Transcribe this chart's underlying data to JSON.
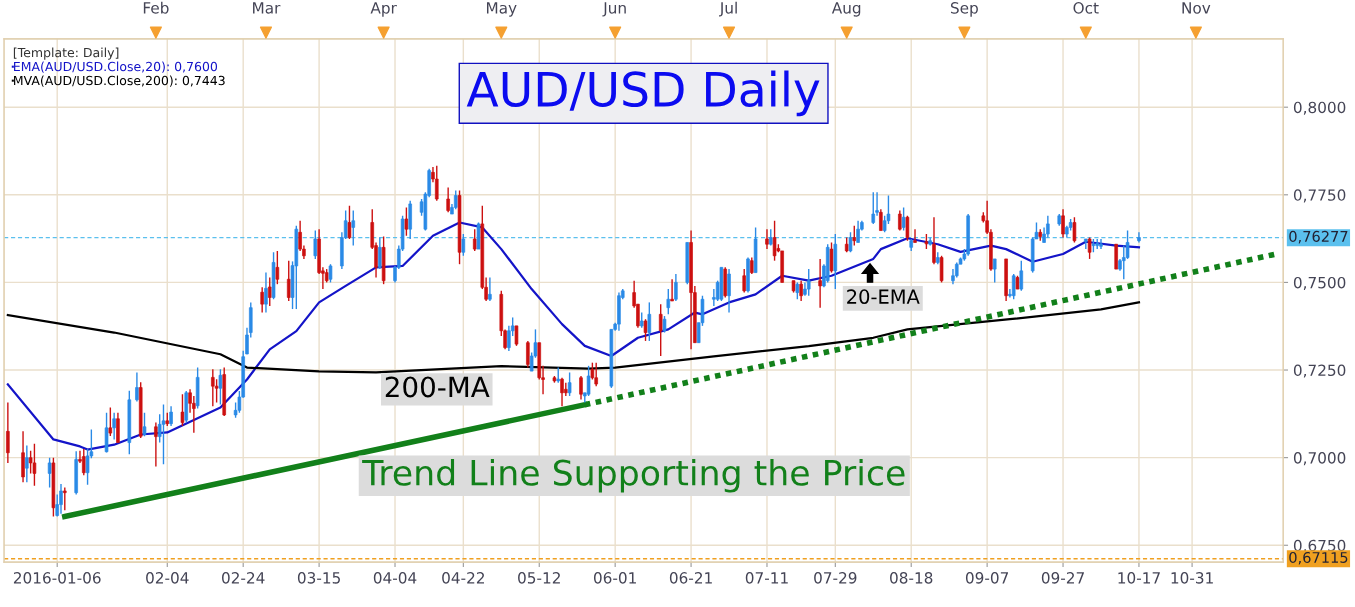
{
  "chart_data": {
    "type": "candlestick",
    "title": "AUD/USD Daily",
    "legend_title": "[Template: Daily]",
    "x": [
      "2015-12-24",
      "2015-12-28",
      "2015-12-29",
      "2015-12-30",
      "2015-12-31",
      "2016-01-04",
      "2016-01-05",
      "2016-01-06",
      "2016-01-07",
      "2016-01-08",
      "2016-01-11",
      "2016-01-12",
      "2016-01-13",
      "2016-01-14",
      "2016-01-15",
      "2016-01-19",
      "2016-01-20",
      "2016-01-21",
      "2016-01-22",
      "2016-01-25",
      "2016-01-27",
      "2016-01-28",
      "2016-01-29",
      "2016-02-01",
      "2016-02-02",
      "2016-02-03",
      "2016-02-04",
      "2016-02-05",
      "2016-02-08",
      "2016-02-09",
      "2016-02-10",
      "2016-02-11",
      "2016-02-12",
      "2016-02-16",
      "2016-02-17",
      "2016-02-18",
      "2016-02-19",
      "2016-02-22",
      "2016-02-23",
      "2016-02-24",
      "2016-02-25",
      "2016-02-26",
      "2016-02-29",
      "2016-03-01",
      "2016-03-02",
      "2016-03-03",
      "2016-03-04",
      "2016-03-07",
      "2016-03-08",
      "2016-03-09",
      "2016-03-10",
      "2016-03-11",
      "2016-03-14",
      "2016-03-15",
      "2016-03-16",
      "2016-03-17",
      "2016-03-18",
      "2016-03-21",
      "2016-03-22",
      "2016-03-23",
      "2016-03-24",
      "2016-03-29",
      "2016-03-30",
      "2016-03-31",
      "2016-04-01",
      "2016-04-04",
      "2016-04-05",
      "2016-04-06",
      "2016-04-07",
      "2016-04-08",
      "2016-04-11",
      "2016-04-12",
      "2016-04-13",
      "2016-04-14",
      "2016-04-15",
      "2016-04-18",
      "2016-04-19",
      "2016-04-20",
      "2016-04-21",
      "2016-04-22",
      "2016-04-25",
      "2016-04-26",
      "2016-04-27",
      "2016-04-28",
      "2016-04-29",
      "2016-05-02",
      "2016-05-03",
      "2016-05-04",
      "2016-05-05",
      "2016-05-06",
      "2016-05-09",
      "2016-05-10",
      "2016-05-11",
      "2016-05-12",
      "2016-05-13",
      "2016-05-16",
      "2016-05-17",
      "2016-05-18",
      "2016-05-19",
      "2016-05-20",
      "2016-05-23",
      "2016-05-24",
      "2016-05-25",
      "2016-05-26",
      "2016-05-27",
      "2016-05-31",
      "2016-06-01",
      "2016-06-02",
      "2016-06-03",
      "2016-06-06",
      "2016-06-07",
      "2016-06-08",
      "2016-06-09",
      "2016-06-10",
      "2016-06-13",
      "2016-06-14",
      "2016-06-15",
      "2016-06-16",
      "2016-06-17",
      "2016-06-20",
      "2016-06-21",
      "2016-06-22",
      "2016-06-23",
      "2016-06-24",
      "2016-06-27",
      "2016-06-28",
      "2016-06-29",
      "2016-06-30",
      "2016-07-01",
      "2016-07-05",
      "2016-07-06",
      "2016-07-07",
      "2016-07-08",
      "2016-07-11",
      "2016-07-12",
      "2016-07-13",
      "2016-07-14",
      "2016-07-15",
      "2016-07-18",
      "2016-07-19",
      "2016-07-20",
      "2016-07-21",
      "2016-07-22",
      "2016-07-25",
      "2016-07-26",
      "2016-07-27",
      "2016-07-28",
      "2016-07-29",
      "2016-08-01",
      "2016-08-02",
      "2016-08-03",
      "2016-08-04",
      "2016-08-05",
      "2016-08-08",
      "2016-08-09",
      "2016-08-10",
      "2016-08-11",
      "2016-08-12",
      "2016-08-15",
      "2016-08-16",
      "2016-08-17",
      "2016-08-18",
      "2016-08-19",
      "2016-08-22",
      "2016-08-23",
      "2016-08-24",
      "2016-08-25",
      "2016-08-26",
      "2016-08-29",
      "2016-08-30",
      "2016-08-31",
      "2016-09-01",
      "2016-09-02",
      "2016-09-06",
      "2016-09-07",
      "2016-09-08",
      "2016-09-09",
      "2016-09-12",
      "2016-09-13",
      "2016-09-14",
      "2016-09-15",
      "2016-09-16",
      "2016-09-19",
      "2016-09-20",
      "2016-09-21",
      "2016-09-22",
      "2016-09-23",
      "2016-09-26",
      "2016-09-27",
      "2016-09-28",
      "2016-09-29",
      "2016-09-30",
      "2016-10-03",
      "2016-10-04",
      "2016-10-05",
      "2016-10-06",
      "2016-10-07",
      "2016-10-11",
      "2016-10-12",
      "2016-10-13",
      "2016-10-14",
      "2016-10-17"
    ],
    "ohlc": [
      [
        0.7075,
        0.7157,
        0.6985,
        0.7014
      ],
      [
        0.7014,
        0.7075,
        0.693,
        0.6945
      ],
      [
        0.697,
        0.7035,
        0.693,
        0.7
      ],
      [
        0.7,
        0.702,
        0.6955,
        0.6985
      ],
      [
        0.6985,
        0.704,
        0.692,
        0.6955
      ],
      [
        0.6955,
        0.7,
        0.6915,
        0.6985
      ],
      [
        0.6985,
        0.7,
        0.6832,
        0.6857
      ],
      [
        0.6835,
        0.6895,
        0.6832,
        0.6866
      ],
      [
        0.6866,
        0.6925,
        0.684,
        0.6905
      ],
      [
        0.6905,
        0.6915,
        0.685,
        0.69
      ],
      [
        0.69,
        0.7018,
        0.6895,
        0.6995
      ],
      [
        0.6995,
        0.702,
        0.6985,
        0.699
      ],
      [
        0.7003,
        0.7025,
        0.695,
        0.6957
      ],
      [
        0.6957,
        0.7025,
        0.6923,
        0.7005
      ],
      [
        0.7005,
        0.708,
        0.6998,
        0.7017
      ],
      [
        0.7017,
        0.7128,
        0.7015,
        0.7085
      ],
      [
        0.7085,
        0.7143,
        0.7062,
        0.707
      ],
      [
        0.7085,
        0.7128,
        0.7052,
        0.7111
      ],
      [
        0.7111,
        0.7128,
        0.7043,
        0.7043
      ],
      [
        0.7043,
        0.7191,
        0.701,
        0.7165
      ],
      [
        0.7165,
        0.7243,
        0.716,
        0.72
      ],
      [
        0.72,
        0.7215,
        0.7056,
        0.7061
      ],
      [
        0.7066,
        0.7128,
        0.7061,
        0.7088
      ],
      [
        0.7088,
        0.71,
        0.6975,
        0.706
      ],
      [
        0.706,
        0.7124,
        0.7043,
        0.7095
      ],
      [
        0.7095,
        0.7152,
        0.6981,
        0.7105
      ],
      [
        0.7105,
        0.7128,
        0.709,
        0.7097
      ],
      [
        0.7097,
        0.7147,
        0.709,
        0.713
      ],
      [
        0.713,
        0.7181,
        0.709,
        0.71
      ],
      [
        0.7107,
        0.719,
        0.71,
        0.7185
      ],
      [
        0.7185,
        0.7195,
        0.7128,
        0.7155
      ],
      [
        0.7155,
        0.7176,
        0.7071,
        0.714
      ],
      [
        0.7148,
        0.7257,
        0.714,
        0.7229
      ],
      [
        0.7229,
        0.7252,
        0.7147,
        0.7204
      ],
      [
        0.7204,
        0.7224,
        0.7157,
        0.7198
      ],
      [
        0.7198,
        0.7252,
        0.7152,
        0.7235
      ],
      [
        0.7237,
        0.7257,
        0.7119,
        0.7122
      ],
      [
        0.7122,
        0.7157,
        0.7114,
        0.7135
      ],
      [
        0.7135,
        0.719,
        0.7128,
        0.7173
      ],
      [
        0.7173,
        0.7305,
        0.7171,
        0.7288
      ],
      [
        0.7296,
        0.7371,
        0.7295,
        0.735
      ],
      [
        0.7357,
        0.7443,
        0.7343,
        0.7428
      ],
      [
        0.7472,
        0.7486,
        0.7414,
        0.7438
      ],
      [
        0.7438,
        0.7528,
        0.7414,
        0.7483
      ],
      [
        0.7487,
        0.7514,
        0.7433,
        0.7457
      ],
      [
        0.7457,
        0.7586,
        0.7452,
        0.7557
      ],
      [
        0.7543,
        0.759,
        0.7495,
        0.7509
      ],
      [
        0.7509,
        0.7562,
        0.7447,
        0.7457
      ],
      [
        0.7457,
        0.756,
        0.7424,
        0.7548
      ],
      [
        0.7547,
        0.7662,
        0.7424,
        0.7652
      ],
      [
        0.7643,
        0.7676,
        0.759,
        0.7595
      ],
      [
        0.7595,
        0.7605,
        0.7567,
        0.7576
      ],
      [
        0.7576,
        0.7648,
        0.7567,
        0.7624
      ],
      [
        0.7624,
        0.7652,
        0.7524,
        0.7528
      ],
      [
        0.7533,
        0.7543,
        0.7481,
        0.7526
      ],
      [
        0.7528,
        0.7538,
        0.75,
        0.7505
      ],
      [
        0.7509,
        0.7552,
        0.75,
        0.7547
      ],
      [
        0.7547,
        0.7643,
        0.7538,
        0.7628
      ],
      [
        0.7628,
        0.7705,
        0.7624,
        0.7676
      ],
      [
        0.7671,
        0.7719,
        0.7624,
        0.7628
      ],
      [
        0.7657,
        0.7705,
        0.7605,
        0.7676
      ],
      [
        0.7671,
        0.7709,
        0.7595,
        0.76
      ],
      [
        0.7605,
        0.7614,
        0.7514,
        0.7543
      ],
      [
        0.7543,
        0.7628,
        0.7538,
        0.76
      ],
      [
        0.76,
        0.7631,
        0.7495,
        0.7505
      ],
      [
        0.7505,
        0.7547,
        0.75,
        0.7543
      ],
      [
        0.7543,
        0.7605,
        0.7538,
        0.7595
      ],
      [
        0.7595,
        0.769,
        0.759,
        0.7681
      ],
      [
        0.7681,
        0.7714,
        0.7633,
        0.7652
      ],
      [
        0.7652,
        0.7733,
        0.7624,
        0.7724
      ],
      [
        0.77,
        0.7738,
        0.769,
        0.773
      ],
      [
        0.7652,
        0.7757,
        0.7648,
        0.7752
      ],
      [
        0.7748,
        0.7824,
        0.7743,
        0.7819
      ],
      [
        0.7814,
        0.7829,
        0.7786,
        0.7795
      ],
      [
        0.7795,
        0.7833,
        0.7733,
        0.7738
      ],
      [
        0.7738,
        0.7771,
        0.77,
        0.7705
      ],
      [
        0.7695,
        0.7724,
        0.7695,
        0.7714
      ],
      [
        0.7714,
        0.7762,
        0.7709,
        0.7748
      ],
      [
        0.7748,
        0.7762,
        0.7552,
        0.7586
      ],
      [
        0.7586,
        0.7638,
        0.7576,
        0.7624
      ],
      [
        0.7624,
        0.7652,
        0.759,
        0.7595
      ],
      [
        0.7595,
        0.7671,
        0.7595,
        0.7667
      ],
      [
        0.7667,
        0.7719,
        0.7481,
        0.7486
      ],
      [
        0.7486,
        0.7514,
        0.7447,
        0.7452
      ],
      [
        0.7452,
        0.7514,
        0.7447,
        0.7466
      ],
      [
        0.7466,
        0.7476,
        0.7347,
        0.7362
      ],
      [
        0.7362,
        0.7366,
        0.7309,
        0.7314
      ],
      [
        0.7314,
        0.7376,
        0.7304,
        0.7362
      ],
      [
        0.7362,
        0.74,
        0.7347,
        0.7376
      ],
      [
        0.7376,
        0.7376,
        0.7319,
        0.7324
      ],
      [
        0.7328,
        0.7333,
        0.7257,
        0.7266
      ],
      [
        0.7247,
        0.73,
        0.7247,
        0.729
      ],
      [
        0.729,
        0.7366,
        0.7285,
        0.7328
      ],
      [
        0.7328,
        0.7328,
        0.7223,
        0.7228
      ],
      [
        0.7228,
        0.7262,
        0.7181,
        0.7223
      ],
      [
        0.7228,
        0.7233,
        0.7214,
        0.7219
      ],
      [
        0.7219,
        0.7257,
        0.7214,
        0.7224
      ],
      [
        0.7224,
        0.7228,
        0.7147,
        0.7185
      ],
      [
        0.7195,
        0.7214,
        0.7176,
        0.7185
      ],
      [
        0.7185,
        0.7243,
        0.7176,
        0.7214
      ],
      [
        0.7228,
        0.7233,
        0.7166,
        0.7181
      ],
      [
        0.7176,
        0.7185,
        0.7157,
        0.7185
      ],
      [
        0.7181,
        0.7262,
        0.7176,
        0.7233
      ],
      [
        0.7252,
        0.7271,
        0.7223,
        0.7228
      ],
      [
        0.7228,
        0.7271,
        0.7204,
        0.721
      ],
      [
        0.7204,
        0.7366,
        0.7199,
        0.7366
      ],
      [
        0.7366,
        0.7385,
        0.7362,
        0.7381
      ],
      [
        0.7381,
        0.7471,
        0.7362,
        0.7462
      ],
      [
        0.7457,
        0.7481,
        0.7452,
        0.7476
      ],
      [
        0.7471,
        0.7505,
        0.7428,
        0.7433
      ],
      [
        0.7438,
        0.7438,
        0.7371,
        0.7376
      ],
      [
        0.7376,
        0.7414,
        0.7371,
        0.739
      ],
      [
        0.739,
        0.7395,
        0.7333,
        0.7357
      ],
      [
        0.7357,
        0.7443,
        0.7333,
        0.7409
      ],
      [
        0.7409,
        0.7438,
        0.729,
        0.7362
      ],
      [
        0.7362,
        0.7404,
        0.7357,
        0.7395
      ],
      [
        0.7428,
        0.7481,
        0.7409,
        0.7452
      ],
      [
        0.7452,
        0.7509,
        0.7447,
        0.7447
      ],
      [
        0.7452,
        0.7524,
        0.7447,
        0.75
      ],
      [
        0.75,
        0.7614,
        0.7495,
        0.7614
      ],
      [
        0.7614,
        0.7648,
        0.7309,
        0.7471
      ],
      [
        0.7471,
        0.749,
        0.7328,
        0.7328
      ],
      [
        0.7328,
        0.7385,
        0.7328,
        0.7385
      ],
      [
        0.7385,
        0.7462,
        0.7376,
        0.7452
      ],
      [
        0.7452,
        0.7481,
        0.7433,
        0.7457
      ],
      [
        0.7452,
        0.7505,
        0.7447,
        0.75
      ],
      [
        0.7452,
        0.7543,
        0.7447,
        0.7543
      ],
      [
        0.7538,
        0.7543,
        0.7457,
        0.7462
      ],
      [
        0.7462,
        0.7538,
        0.7414,
        0.7524
      ],
      [
        0.7519,
        0.7538,
        0.7471,
        0.7476
      ],
      [
        0.7476,
        0.7571,
        0.7471,
        0.7567
      ],
      [
        0.7562,
        0.7571,
        0.7524,
        0.7528
      ],
      [
        0.7528,
        0.7657,
        0.7528,
        0.7624
      ],
      [
        0.7624,
        0.7652,
        0.7595,
        0.7609
      ],
      [
        0.7609,
        0.7652,
        0.7605,
        0.7628
      ],
      [
        0.7628,
        0.7676,
        0.7562,
        0.7576
      ],
      [
        0.7597,
        0.7609,
        0.7586,
        0.759
      ],
      [
        0.759,
        0.759,
        0.75,
        0.75
      ],
      [
        0.7505,
        0.7505,
        0.7471,
        0.7476
      ],
      [
        0.7471,
        0.75,
        0.7452,
        0.7495
      ],
      [
        0.7495,
        0.7505,
        0.7447,
        0.7462
      ],
      [
        0.7466,
        0.75,
        0.7462,
        0.7481
      ],
      [
        0.7481,
        0.7538,
        0.7462,
        0.7505
      ],
      [
        0.7505,
        0.7567,
        0.7428,
        0.749
      ],
      [
        0.749,
        0.7552,
        0.7486,
        0.7547
      ],
      [
        0.7505,
        0.7609,
        0.75,
        0.76
      ],
      [
        0.7595,
        0.7614,
        0.7528,
        0.7533
      ],
      [
        0.7533,
        0.7638,
        0.7481,
        0.7609
      ],
      [
        0.7609,
        0.7628,
        0.7586,
        0.759
      ],
      [
        0.759,
        0.7643,
        0.7586,
        0.7628
      ],
      [
        0.7628,
        0.7662,
        0.7605,
        0.7619
      ],
      [
        0.7614,
        0.7676,
        0.7614,
        0.7652
      ],
      [
        0.7652,
        0.7676,
        0.7648,
        0.7671
      ],
      [
        0.7671,
        0.7757,
        0.7667,
        0.7695
      ],
      [
        0.77,
        0.7757,
        0.769,
        0.7705
      ],
      [
        0.77,
        0.7709,
        0.7648,
        0.7648
      ],
      [
        0.7648,
        0.769,
        0.7643,
        0.7676
      ],
      [
        0.7676,
        0.7748,
        0.7667,
        0.7695
      ],
      [
        0.7695,
        0.7705,
        0.7648,
        0.7652
      ],
      [
        0.7657,
        0.7714,
        0.7648,
        0.7686
      ],
      [
        0.7686,
        0.769,
        0.7619,
        0.7628
      ],
      [
        0.76,
        0.7624,
        0.759,
        0.7619
      ],
      [
        0.7619,
        0.7652,
        0.7614,
        0.7614
      ],
      [
        0.7616,
        0.7638,
        0.7595,
        0.761
      ],
      [
        0.7609,
        0.7628,
        0.7605,
        0.7619
      ],
      [
        0.7609,
        0.7686,
        0.7552,
        0.7557
      ],
      [
        0.7557,
        0.7586,
        0.7552,
        0.7571
      ],
      [
        0.7571,
        0.7576,
        0.75,
        0.7505
      ],
      [
        0.7505,
        0.7538,
        0.7495,
        0.7519
      ],
      [
        0.7519,
        0.7557,
        0.7514,
        0.7552
      ],
      [
        0.7552,
        0.7571,
        0.7552,
        0.7567
      ],
      [
        0.7567,
        0.7595,
        0.7562,
        0.7581
      ],
      [
        0.7581,
        0.7695,
        0.7576,
        0.769
      ],
      [
        0.769,
        0.77,
        0.7671,
        0.7676
      ],
      [
        0.7676,
        0.7733,
        0.7638,
        0.7643
      ],
      [
        0.7643,
        0.7652,
        0.7533,
        0.7538
      ],
      [
        0.7538,
        0.7567,
        0.75,
        0.7567
      ],
      [
        0.7567,
        0.7567,
        0.7447,
        0.7462
      ],
      [
        0.7462,
        0.7481,
        0.7457,
        0.7466
      ],
      [
        0.7462,
        0.7524,
        0.7452,
        0.7519
      ],
      [
        0.7514,
        0.7519,
        0.7481,
        0.7481
      ],
      [
        0.7481,
        0.7562,
        0.7476,
        0.7533
      ],
      [
        0.7533,
        0.7628,
        0.7528,
        0.7624
      ],
      [
        0.7624,
        0.7671,
        0.7624,
        0.7643
      ],
      [
        0.7643,
        0.7652,
        0.7619,
        0.7631
      ],
      [
        0.7614,
        0.7657,
        0.7614,
        0.7638
      ],
      [
        0.7638,
        0.769,
        0.7628,
        0.7667
      ],
      [
        0.7667,
        0.7695,
        0.7662,
        0.769
      ],
      [
        0.769,
        0.7709,
        0.7628,
        0.7638
      ],
      [
        0.7638,
        0.7662,
        0.7628,
        0.7657
      ],
      [
        0.7657,
        0.7681,
        0.7648,
        0.7671
      ],
      [
        0.7671,
        0.7686,
        0.7614,
        0.7619
      ],
      [
        0.7616,
        0.7624,
        0.7595,
        0.7624
      ],
      [
        0.7624,
        0.7628,
        0.7567,
        0.7586
      ],
      [
        0.7605,
        0.7624,
        0.7586,
        0.7609
      ],
      [
        0.7605,
        0.7624,
        0.7595,
        0.7611
      ],
      [
        0.7603,
        0.7624,
        0.7595,
        0.7609
      ],
      [
        0.7609,
        0.7609,
        0.7538,
        0.7538
      ],
      [
        0.7538,
        0.7567,
        0.7533,
        0.7562
      ],
      [
        0.7562,
        0.7605,
        0.7509,
        0.7571
      ],
      [
        0.7571,
        0.7648,
        0.7567,
        0.7614
      ],
      [
        0.7619,
        0.7643,
        0.7614,
        0.7628
      ]
    ],
    "series": [
      {
        "type": "line",
        "name": "EMA(AUD/USD.Close,20): 0,7600",
        "color": "#1414c8",
        "x": [
          "2015-12-24",
          "2016-01-05",
          "2016-01-12",
          "2016-01-14",
          "2016-01-21",
          "2016-01-28",
          "2016-02-04",
          "2016-02-18",
          "2016-02-25",
          "2016-03-02",
          "2016-03-09",
          "2016-03-15",
          "2016-03-22",
          "2016-03-30",
          "2016-04-06",
          "2016-04-14",
          "2016-04-21",
          "2016-04-27",
          "2016-05-02",
          "2016-05-10",
          "2016-05-18",
          "2016-05-24",
          "2016-05-31",
          "2016-06-07",
          "2016-06-15",
          "2016-06-22",
          "2016-06-24",
          "2016-07-01",
          "2016-07-08",
          "2016-07-15",
          "2016-07-22",
          "2016-07-28",
          "2016-08-08",
          "2016-08-10",
          "2016-08-17",
          "2016-08-25",
          "2016-08-31",
          "2016-09-08",
          "2016-09-12",
          "2016-09-19",
          "2016-09-27",
          "2016-10-03",
          "2016-10-11",
          "2016-10-17"
        ],
        "values": [
          0.7209,
          0.7052,
          0.7032,
          0.7023,
          0.7037,
          0.7066,
          0.7072,
          0.7143,
          0.7223,
          0.7309,
          0.7361,
          0.7443,
          0.749,
          0.7543,
          0.7547,
          0.7633,
          0.7671,
          0.7657,
          0.7595,
          0.7481,
          0.7381,
          0.7319,
          0.729,
          0.7342,
          0.7366,
          0.7414,
          0.7409,
          0.7443,
          0.7466,
          0.7519,
          0.7505,
          0.7519,
          0.7567,
          0.7595,
          0.7626,
          0.7609,
          0.7587,
          0.7605,
          0.7595,
          0.7559,
          0.7581,
          0.7616,
          0.7605,
          0.76
        ]
      },
      {
        "type": "line",
        "name": "MVA(AUD/USD.Close,200): 0,7443",
        "color": "#000000",
        "x": [
          "2015-12-24",
          "2016-01-21",
          "2016-02-18",
          "2016-02-25",
          "2016-03-15",
          "2016-03-30",
          "2016-05-02",
          "2016-05-25",
          "2016-06-01",
          "2016-06-27",
          "2016-07-22",
          "2016-08-08",
          "2016-08-17",
          "2016-09-13",
          "2016-10-07",
          "2016-10-17"
        ],
        "values": [
          0.7407,
          0.7357,
          0.7295,
          0.7257,
          0.7246,
          0.7243,
          0.7261,
          0.7254,
          0.7257,
          0.7289,
          0.7318,
          0.7342,
          0.7366,
          0.7395,
          0.7423,
          0.7443
        ]
      },
      {
        "type": "line",
        "color": "#12801a",
        "line_style": "solid",
        "x": [
          "2016-01-08",
          "2016-05-24"
        ],
        "values": [
          0.6832,
          0.7151
        ]
      },
      {
        "type": "line",
        "color": "#12801a",
        "line_style": "dotted",
        "x": [
          "2016-05-24",
          "2016-11-23"
        ],
        "values": [
          0.7151,
          0.7583
        ]
      }
    ],
    "xlim": [
      "2015-12-23",
      "2016-11-24"
    ],
    "xticks": [
      {
        "value": "2016-01-06",
        "label": "2016-01-06"
      },
      {
        "value": "2016-02-04",
        "label": "02-04"
      },
      {
        "value": "2016-02-24",
        "label": "02-24"
      },
      {
        "value": "2016-03-15",
        "label": "03-15"
      },
      {
        "value": "2016-04-04",
        "label": "04-04"
      },
      {
        "value": "2016-04-22",
        "label": "04-22"
      },
      {
        "value": "2016-05-12",
        "label": "05-12"
      },
      {
        "value": "2016-06-01",
        "label": "06-01"
      },
      {
        "value": "2016-06-21",
        "label": "06-21"
      },
      {
        "value": "2016-07-11",
        "label": "07-11"
      },
      {
        "value": "2016-07-29",
        "label": "07-29"
      },
      {
        "value": "2016-08-18",
        "label": "08-18"
      },
      {
        "value": "2016-09-07",
        "label": "09-07"
      },
      {
        "value": "2016-09-27",
        "label": "09-27"
      },
      {
        "value": "2016-10-17",
        "label": "10-17"
      },
      {
        "value": "2016-10-31",
        "label": "10-31"
      }
    ],
    "x2lim": [
      "2015-12-23",
      "2016-11-24"
    ],
    "x2ticks": [
      {
        "value": "2016-02-01",
        "label": "Feb"
      },
      {
        "value": "2016-03-01",
        "label": "Mar"
      },
      {
        "value": "2016-04-01",
        "label": "Apr"
      },
      {
        "value": "2016-05-02",
        "label": "May"
      },
      {
        "value": "2016-06-01",
        "label": "Jun"
      },
      {
        "value": "2016-07-01",
        "label": "Jul"
      },
      {
        "value": "2016-08-01",
        "label": "Aug"
      },
      {
        "value": "2016-09-01",
        "label": "Sep"
      },
      {
        "value": "2016-10-03",
        "label": "Oct"
      },
      {
        "value": "2016-11-01",
        "label": "Nov"
      }
    ],
    "ylim": [
      0.6702,
      0.8195
    ],
    "yticks": [
      {
        "value": 0.675,
        "label": "0,6750"
      },
      {
        "value": 0.7,
        "label": "0,7000"
      },
      {
        "value": 0.725,
        "label": "0,7250"
      },
      {
        "value": 0.75,
        "label": "0,7500"
      },
      {
        "value": 0.775,
        "label": "0,7750"
      },
      {
        "value": 0.8,
        "label": "0,8000"
      }
    ],
    "ref_lines": [
      {
        "axis": "y",
        "value": 0.76277,
        "label": "0,76277",
        "color": "#5bc0ee",
        "line_style": "dashed"
      },
      {
        "axis": "y",
        "value": 0.67115,
        "label": "0,67115",
        "color": "#f0a020",
        "line_style": "dashed"
      }
    ],
    "annotations": [
      {
        "text": "200-MA",
        "x": "2016-04-15",
        "y": 0.7245
      },
      "20-EMA",
      "Trend Line Supporting the Price"
    ],
    "grid": true,
    "legend": "top left"
  }
}
